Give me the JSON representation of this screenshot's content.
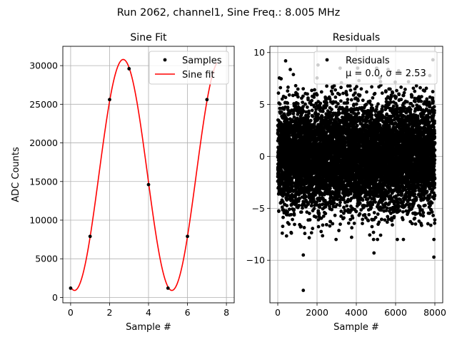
{
  "figure": {
    "suptitle": "Run 2062, channel1, Sine Freq.: 8.005 MHz"
  },
  "chart_data": [
    {
      "type": "line",
      "title": "Sine Fit",
      "xlabel": "Sample #",
      "ylabel": "ADC Counts",
      "xlim": [
        -0.4,
        8.4
      ],
      "ylim": [
        -700,
        32500
      ],
      "xticks": [
        0,
        2,
        4,
        6,
        8
      ],
      "yticks": [
        0,
        5000,
        10000,
        15000,
        20000,
        25000,
        30000
      ],
      "grid": true,
      "legend": {
        "placement": "top-right",
        "entries": [
          "Samples",
          "Sine fit"
        ]
      },
      "series": [
        {
          "name": "Samples",
          "kind": "scatter",
          "color": "#000000",
          "x": [
            0,
            1,
            2,
            3,
            4,
            5,
            6,
            7
          ],
          "y": [
            1200,
            7900,
            25600,
            29600,
            14600,
            1200,
            7900,
            25600
          ]
        },
        {
          "name": "Sine fit",
          "kind": "line",
          "color": "#ff0000",
          "model": {
            "offset": 15850,
            "amplitude": 14950,
            "period_samples": 4.9969,
            "peak_sample": 2.7,
            "x_range": [
              0,
              7.5
            ]
          }
        }
      ]
    },
    {
      "type": "scatter",
      "title": "Residuals",
      "xlabel": "Sample #",
      "ylabel": "",
      "xlim": [
        -400,
        8400
      ],
      "ylim": [
        -14.1,
        10.6
      ],
      "xticks": [
        0,
        2000,
        4000,
        6000,
        8000
      ],
      "yticks": [
        -10,
        -5,
        0,
        5,
        10
      ],
      "grid": true,
      "legend": {
        "placement": "top-right",
        "entries": [
          "Residuals"
        ],
        "stats_line": "μ = 0.0, σ = 2.53"
      },
      "series": [
        {
          "name": "Residuals",
          "color": "#000000",
          "mean": 0.0,
          "std": 2.53,
          "x_range": [
            0,
            8000
          ],
          "n_points": 8000,
          "outliers": [
            {
              "x": 1300,
              "y": -12.9
            },
            {
              "x": 1300,
              "y": -9.5
            },
            {
              "x": 4900,
              "y": -9.3
            },
            {
              "x": 7950,
              "y": -9.7
            },
            {
              "x": 400,
              "y": 9.2
            },
            {
              "x": 2050,
              "y": 8.8
            },
            {
              "x": 7900,
              "y": 9.3
            }
          ]
        }
      ]
    }
  ]
}
